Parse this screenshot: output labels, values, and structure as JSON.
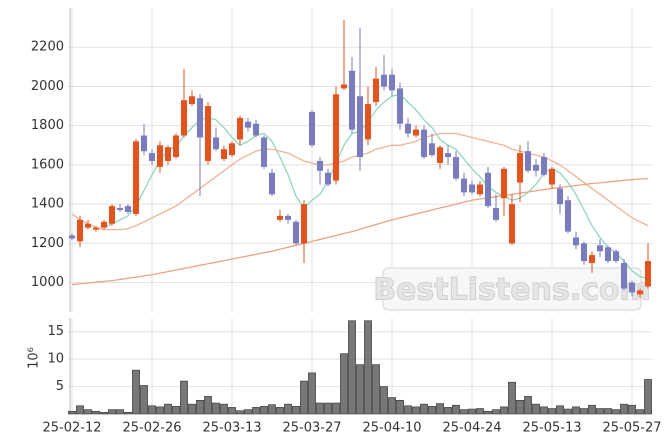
{
  "chart_data": [
    {
      "type": "candlestick",
      "watermark": "BestListens.com",
      "up_color": "#e0541f",
      "down_color": "#7a7dbd",
      "open": [
        1240,
        1210,
        1280,
        1270,
        1280,
        1300,
        1380,
        1390,
        1350,
        1750,
        1660,
        1590,
        1620,
        1640,
        1750,
        1910,
        1940,
        1620,
        1740,
        1630,
        1650,
        1730,
        1820,
        1810,
        1740,
        1560,
        1320,
        1340,
        1310,
        1200,
        1870,
        1620,
        1560,
        1520,
        1990,
        2080,
        1950,
        1730,
        1920,
        2060,
        2060,
        1990,
        1810,
        1750,
        1780,
        1710,
        1610,
        1660,
        1640,
        1530,
        1500,
        1450,
        1560,
        1380,
        1430,
        1200,
        1510,
        1670,
        1600,
        1640,
        1500,
        1480,
        1420,
        1230,
        1200,
        1100,
        1190,
        1180,
        1160,
        1100,
        1000,
        940,
        980
      ],
      "high": [
        1250,
        1340,
        1320,
        1290,
        1320,
        1400,
        1400,
        1400,
        1730,
        1810,
        1680,
        1720,
        1700,
        1760,
        2090,
        1980,
        1960,
        1920,
        1790,
        1700,
        1720,
        1850,
        1840,
        1830,
        1750,
        1580,
        1370,
        1350,
        1320,
        1420,
        1880,
        1640,
        1580,
        2000,
        2340,
        2150,
        2300,
        2000,
        2100,
        2160,
        2090,
        2020,
        1840,
        1800,
        1800,
        1760,
        1700,
        1700,
        1670,
        1560,
        1520,
        1520,
        1590,
        1450,
        1590,
        1450,
        1700,
        1720,
        1630,
        1660,
        1590,
        1500,
        1440,
        1260,
        1210,
        1160,
        1220,
        1190,
        1170,
        1120,
        1010,
        970,
        1200
      ],
      "low": [
        1215,
        1180,
        1270,
        1260,
        1270,
        1290,
        1360,
        1350,
        1340,
        1650,
        1600,
        1560,
        1600,
        1630,
        1740,
        1900,
        1440,
        1600,
        1670,
        1620,
        1640,
        1700,
        1770,
        1740,
        1580,
        1440,
        1310,
        1300,
        1190,
        1100,
        1690,
        1500,
        1490,
        1500,
        1980,
        1760,
        1570,
        1700,
        1900,
        1980,
        1950,
        1780,
        1740,
        1740,
        1630,
        1640,
        1580,
        1600,
        1520,
        1440,
        1450,
        1440,
        1380,
        1310,
        1340,
        1190,
        1410,
        1560,
        1540,
        1540,
        1480,
        1350,
        1250,
        1170,
        1090,
        1050,
        1130,
        1100,
        1100,
        960,
        930,
        920,
        970
      ],
      "close": [
        1225,
        1320,
        1300,
        1280,
        1310,
        1390,
        1370,
        1360,
        1720,
        1670,
        1620,
        1700,
        1690,
        1750,
        1930,
        1950,
        1740,
        1900,
        1680,
        1680,
        1710,
        1840,
        1790,
        1750,
        1590,
        1450,
        1340,
        1320,
        1200,
        1400,
        1700,
        1570,
        1500,
        1960,
        2010,
        1780,
        1640,
        1910,
        2040,
        2000,
        1980,
        1810,
        1760,
        1780,
        1640,
        1650,
        1690,
        1640,
        1530,
        1460,
        1460,
        1500,
        1390,
        1320,
        1580,
        1400,
        1660,
        1570,
        1570,
        1550,
        1580,
        1400,
        1260,
        1190,
        1110,
        1140,
        1160,
        1110,
        1110,
        970,
        950,
        960,
        1110
      ],
      "lines": [
        {
          "color": "#8fd6c2",
          "values": [
            null,
            null,
            null,
            null,
            1280,
            1300,
            1320,
            1340,
            1390,
            1470,
            1550,
            1620,
            1680,
            1690,
            1750,
            1790,
            1830,
            1840,
            1830,
            1790,
            1740,
            1700,
            1720,
            1750,
            1760,
            1720,
            1640,
            1550,
            1440,
            1380,
            1420,
            1450,
            1520,
            1610,
            1700,
            1760,
            1770,
            1820,
            1880,
            1920,
            1950,
            1960,
            1920,
            1880,
            1830,
            1790,
            1730,
            1700,
            1680,
            1630,
            1580,
            1540,
            1490,
            1460,
            1440,
            1420,
            1430,
            1460,
            1500,
            1560,
            1580,
            1560,
            1510,
            1450,
            1370,
            1290,
            1230,
            1180,
            1150,
            1110,
            1060,
            1030,
            1020
          ]
        },
        {
          "color": "#f0b393",
          "values": [
            1350,
            1320,
            1300,
            1280,
            1270,
            1270,
            1270,
            1275,
            1290,
            1310,
            1330,
            1350,
            1370,
            1390,
            1420,
            1450,
            1480,
            1510,
            1540,
            1570,
            1600,
            1630,
            1650,
            1670,
            1680,
            1680,
            1670,
            1660,
            1640,
            1620,
            1610,
            1600,
            1600,
            1610,
            1620,
            1640,
            1650,
            1660,
            1680,
            1690,
            1700,
            1700,
            1710,
            1720,
            1740,
            1750,
            1760,
            1760,
            1760,
            1750,
            1740,
            1730,
            1720,
            1710,
            1700,
            1680,
            1670,
            1660,
            1650,
            1640,
            1620,
            1600,
            1570,
            1540,
            1510,
            1480,
            1450,
            1420,
            1390,
            1360,
            1330,
            1310,
            1290
          ]
        },
        {
          "color": "#e8a582",
          "values": [
            990,
            994,
            998,
            1002,
            1006,
            1010,
            1016,
            1022,
            1028,
            1034,
            1040,
            1048,
            1056,
            1064,
            1072,
            1080,
            1088,
            1096,
            1104,
            1112,
            1120,
            1128,
            1136,
            1144,
            1152,
            1160,
            1170,
            1180,
            1190,
            1200,
            1210,
            1220,
            1230,
            1240,
            1250,
            1260,
            1272,
            1284,
            1296,
            1308,
            1320,
            1330,
            1340,
            1350,
            1360,
            1370,
            1380,
            1390,
            1400,
            1410,
            1420,
            1426,
            1432,
            1438,
            1444,
            1450,
            1456,
            1462,
            1468,
            1474,
            1480,
            1485,
            1490,
            1495,
            1500,
            1505,
            1509,
            1513,
            1517,
            1521,
            1525,
            1528,
            1530
          ]
        }
      ],
      "ylim": [
        850,
        2400
      ],
      "yticks": [
        1000,
        1200,
        1400,
        1600,
        1800,
        2000,
        2200
      ],
      "grid": true
    },
    {
      "type": "bar",
      "y_label": "10⁶",
      "color": "#777777",
      "categories": [
        "25-02-12",
        null,
        null,
        null,
        null,
        null,
        null,
        null,
        null,
        null,
        "25-02-26",
        null,
        null,
        null,
        null,
        null,
        null,
        null,
        null,
        null,
        "25-03-13",
        null,
        null,
        null,
        null,
        null,
        null,
        null,
        null,
        null,
        "25-03-27",
        null,
        null,
        null,
        null,
        null,
        null,
        null,
        null,
        null,
        "25-04-10",
        null,
        null,
        null,
        null,
        null,
        null,
        null,
        null,
        null,
        "25-04-24",
        null,
        null,
        null,
        null,
        null,
        null,
        null,
        null,
        null,
        "25-05-13",
        null,
        null,
        null,
        null,
        null,
        null,
        null,
        null,
        null,
        "25-05-27",
        null,
        null
      ],
      "values": [
        0.5,
        1.5,
        0.8,
        0.5,
        0.3,
        0.8,
        0.8,
        0.3,
        8,
        5.2,
        1.5,
        1.3,
        1.8,
        1.4,
        6,
        1.8,
        2.5,
        3.2,
        2,
        1.8,
        1.2,
        0.6,
        0.8,
        1.2,
        1.4,
        1.7,
        1.2,
        1.8,
        1.4,
        6,
        7.5,
        2,
        2,
        2,
        11,
        17,
        9,
        17,
        9,
        5,
        3,
        2.5,
        1.5,
        1.3,
        1.8,
        1.4,
        1.9,
        1.2,
        1.6,
        0.8,
        0.9,
        1.0,
        0.5,
        0.8,
        1.3,
        5.8,
        2.5,
        3.2,
        1.8,
        1.3,
        1.0,
        1.5,
        0.9,
        1.3,
        1.0,
        1.6,
        1.0,
        1.0,
        0.8,
        1.8,
        1.6,
        0.8,
        6.3
      ],
      "ylim": [
        0,
        17.5
      ],
      "yticks": [
        5,
        10,
        15
      ],
      "grid": true
    }
  ]
}
